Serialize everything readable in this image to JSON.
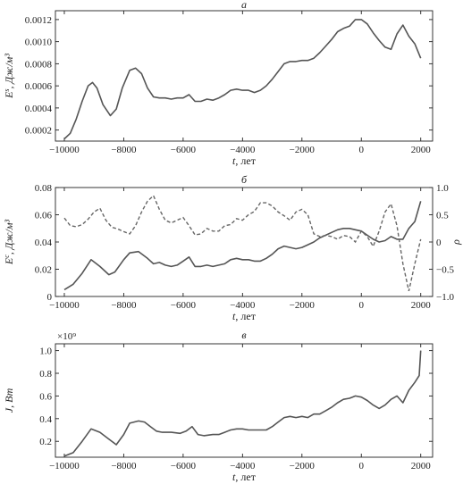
{
  "chart_data": [
    {
      "type": "line",
      "panel_label": "а",
      "xlabel": "t, лет",
      "ylabel": "E^s, Дж/м³",
      "xlim": [
        -10300,
        2400
      ],
      "ylim": [
        0.0001,
        0.00128
      ],
      "x_ticks": [
        -10000,
        -8000,
        -6000,
        -4000,
        -2000,
        0,
        2000
      ],
      "x_tick_labels": [
        "−10000",
        "−8000",
        "−6000",
        "−4000",
        "−2000",
        "0",
        "2000"
      ],
      "y_ticks": [
        0.0002,
        0.0004,
        0.0006,
        0.0008,
        0.001,
        0.0012
      ],
      "y_tick_labels": [
        "0.0002",
        "0.0004",
        "0.0006",
        "0.0008",
        "0.0010",
        "0.0012"
      ],
      "series": [
        {
          "style": "solid",
          "x": [
            -10000,
            -9800,
            -9600,
            -9400,
            -9200,
            -9050,
            -8900,
            -8700,
            -8450,
            -8250,
            -8050,
            -7800,
            -7600,
            -7400,
            -7200,
            -7000,
            -6800,
            -6600,
            -6400,
            -6200,
            -6000,
            -5800,
            -5600,
            -5400,
            -5200,
            -5000,
            -4800,
            -4600,
            -4400,
            -4200,
            -4000,
            -3800,
            -3600,
            -3400,
            -3200,
            -3000,
            -2800,
            -2600,
            -2400,
            -2200,
            -2000,
            -1800,
            -1600,
            -1400,
            -1200,
            -1000,
            -800,
            -600,
            -400,
            -200,
            0,
            200,
            400,
            600,
            800,
            1000,
            1200,
            1400,
            1600,
            1800,
            2000
          ],
          "y": [
            0.00012,
            0.00017,
            0.0003,
            0.00046,
            0.0006,
            0.00063,
            0.00058,
            0.00043,
            0.00033,
            0.00039,
            0.00058,
            0.00074,
            0.00076,
            0.00071,
            0.00058,
            0.0005,
            0.00049,
            0.00049,
            0.00048,
            0.00049,
            0.00049,
            0.00052,
            0.00046,
            0.00046,
            0.00048,
            0.00047,
            0.00049,
            0.00052,
            0.00056,
            0.00057,
            0.00056,
            0.00056,
            0.00054,
            0.00056,
            0.0006,
            0.00066,
            0.00073,
            0.0008,
            0.00082,
            0.00082,
            0.00083,
            0.00083,
            0.00085,
            0.0009,
            0.00096,
            0.00102,
            0.00109,
            0.00112,
            0.00114,
            0.0012,
            0.0012,
            0.00116,
            0.00108,
            0.00101,
            0.00095,
            0.00093,
            0.00107,
            0.00115,
            0.00105,
            0.00098,
            0.00085
          ]
        }
      ]
    },
    {
      "type": "line",
      "panel_label": "б",
      "xlabel": "t, лет",
      "ylabel": "E^c, Дж/м³",
      "ylabel_right": "ρ",
      "xlim": [
        -10300,
        2400
      ],
      "ylim": [
        0,
        0.08
      ],
      "ylim_right": [
        -1.0,
        1.0
      ],
      "x_ticks": [
        -10000,
        -8000,
        -6000,
        -4000,
        -2000,
        0,
        2000
      ],
      "x_tick_labels": [
        "−10000",
        "−8000",
        "−6000",
        "−4000",
        "−2000",
        "0",
        "2000"
      ],
      "y_ticks": [
        0,
        0.02,
        0.04,
        0.06,
        0.08
      ],
      "y_tick_labels": [
        "0",
        "0.02",
        "0.04",
        "0.06",
        "0.08"
      ],
      "y_ticks_right": [
        -1.0,
        -0.5,
        0,
        0.5,
        1.0
      ],
      "y_tick_labels_right": [
        "−1.0",
        "−0.5",
        "0",
        "0.5",
        "1.0"
      ],
      "series": [
        {
          "style": "solid",
          "axis": "left",
          "x": [
            -10000,
            -9700,
            -9400,
            -9100,
            -8800,
            -8500,
            -8300,
            -8000,
            -7800,
            -7500,
            -7200,
            -7000,
            -6800,
            -6600,
            -6400,
            -6200,
            -6000,
            -5800,
            -5600,
            -5400,
            -5200,
            -5000,
            -4800,
            -4600,
            -4400,
            -4200,
            -4000,
            -3800,
            -3600,
            -3400,
            -3200,
            -3000,
            -2800,
            -2600,
            -2400,
            -2200,
            -2000,
            -1800,
            -1600,
            -1400,
            -1200,
            -1000,
            -800,
            -600,
            -400,
            -200,
            0,
            200,
            400,
            600,
            800,
            1000,
            1200,
            1400,
            1600,
            1800,
            2000
          ],
          "y": [
            0.005,
            0.009,
            0.017,
            0.027,
            0.022,
            0.016,
            0.018,
            0.027,
            0.032,
            0.033,
            0.028,
            0.024,
            0.025,
            0.023,
            0.022,
            0.023,
            0.026,
            0.029,
            0.022,
            0.022,
            0.023,
            0.022,
            0.023,
            0.024,
            0.027,
            0.028,
            0.027,
            0.027,
            0.026,
            0.026,
            0.028,
            0.031,
            0.035,
            0.037,
            0.036,
            0.035,
            0.036,
            0.038,
            0.04,
            0.043,
            0.045,
            0.047,
            0.049,
            0.05,
            0.05,
            0.049,
            0.048,
            0.045,
            0.042,
            0.04,
            0.041,
            0.044,
            0.042,
            0.042,
            0.05,
            0.055,
            0.07
          ]
        },
        {
          "style": "dashed",
          "axis": "right",
          "x": [
            -10000,
            -9800,
            -9600,
            -9400,
            -9200,
            -9000,
            -8800,
            -8600,
            -8400,
            -8200,
            -8000,
            -7800,
            -7600,
            -7400,
            -7200,
            -7000,
            -6800,
            -6600,
            -6400,
            -6200,
            -6000,
            -5800,
            -5600,
            -5400,
            -5200,
            -5000,
            -4800,
            -4600,
            -4400,
            -4200,
            -4000,
            -3800,
            -3600,
            -3400,
            -3200,
            -3000,
            -2800,
            -2600,
            -2400,
            -2200,
            -2000,
            -1800,
            -1600,
            -1400,
            -1200,
            -1000,
            -800,
            -600,
            -400,
            -200,
            0,
            200,
            400,
            600,
            800,
            1000,
            1200,
            1400,
            1600,
            1800,
            2000
          ],
          "y": [
            0.44,
            0.3,
            0.28,
            0.32,
            0.42,
            0.55,
            0.62,
            0.4,
            0.27,
            0.24,
            0.19,
            0.15,
            0.3,
            0.55,
            0.75,
            0.85,
            0.6,
            0.4,
            0.35,
            0.4,
            0.45,
            0.3,
            0.13,
            0.15,
            0.25,
            0.2,
            0.2,
            0.3,
            0.32,
            0.43,
            0.4,
            0.5,
            0.56,
            0.72,
            0.72,
            0.66,
            0.55,
            0.48,
            0.4,
            0.55,
            0.6,
            0.5,
            0.15,
            0.1,
            0.12,
            0.1,
            0.05,
            0.12,
            0.1,
            0.0,
            0.2,
            0.1,
            -0.08,
            0.2,
            0.55,
            0.7,
            0.3,
            -0.4,
            -0.9,
            -0.4,
            0.05
          ]
        }
      ]
    },
    {
      "type": "line",
      "panel_label": "в",
      "xlabel": "t, лет",
      "ylabel": "J, Вт",
      "y_multiplier": "×10⁹",
      "xlim": [
        -10300,
        2400
      ],
      "ylim": [
        0.06,
        1.06
      ],
      "x_ticks": [
        -10000,
        -8000,
        -6000,
        -4000,
        -2000,
        0,
        2000
      ],
      "x_tick_labels": [
        "−10000",
        "−8000",
        "−6000",
        "−4000",
        "−2000",
        "0",
        "2000"
      ],
      "y_ticks": [
        0.2,
        0.4,
        0.6,
        0.8,
        1.0
      ],
      "y_tick_labels": [
        "0.2",
        "0.4",
        "0.6",
        "0.8",
        "1.0"
      ],
      "series": [
        {
          "style": "solid",
          "x": [
            -10000,
            -9700,
            -9400,
            -9100,
            -8800,
            -8500,
            -8250,
            -8000,
            -7800,
            -7500,
            -7300,
            -7100,
            -6900,
            -6700,
            -6400,
            -6100,
            -5900,
            -5700,
            -5500,
            -5300,
            -5000,
            -4800,
            -4600,
            -4400,
            -4200,
            -4000,
            -3800,
            -3600,
            -3400,
            -3200,
            -3000,
            -2800,
            -2600,
            -2400,
            -2200,
            -2000,
            -1800,
            -1600,
            -1400,
            -1200,
            -1000,
            -800,
            -600,
            -400,
            -300,
            -200,
            0,
            200,
            400,
            600,
            800,
            1000,
            1200,
            1400,
            1600,
            1800,
            1950,
            2000
          ],
          "y": [
            0.07,
            0.1,
            0.2,
            0.31,
            0.28,
            0.22,
            0.17,
            0.26,
            0.36,
            0.38,
            0.37,
            0.33,
            0.29,
            0.28,
            0.28,
            0.27,
            0.29,
            0.33,
            0.26,
            0.25,
            0.26,
            0.26,
            0.28,
            0.3,
            0.31,
            0.31,
            0.3,
            0.3,
            0.3,
            0.3,
            0.33,
            0.37,
            0.41,
            0.42,
            0.41,
            0.42,
            0.41,
            0.44,
            0.44,
            0.47,
            0.5,
            0.54,
            0.57,
            0.58,
            0.59,
            0.6,
            0.59,
            0.56,
            0.52,
            0.49,
            0.52,
            0.57,
            0.6,
            0.54,
            0.65,
            0.72,
            0.78,
            1.0
          ]
        }
      ]
    }
  ]
}
